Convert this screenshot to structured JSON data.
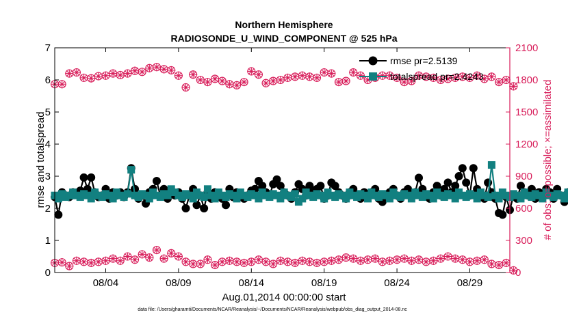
{
  "chart_data": {
    "type": "line",
    "title": "Northern Hemisphere",
    "subtitle": "RADIOSONDE_U_WIND_COMPONENT @ 525 hPa",
    "xlabel": "Aug.01,2014 00:00:00 start",
    "ylabel_left": "rmse and totalspread",
    "ylabel_right": "# of obs: o=possible; ×=assimilated",
    "footnote": "data file: /Users/gharamti/Documents/NCAR/Reanalysis/~/Documents/NCAR/Reanalysis/webpub/obs_diag_output_2014-08.nc",
    "x_range": [
      0.5,
      31.75
    ],
    "ylim_left": [
      0,
      7
    ],
    "ylim_right": [
      0,
      2100
    ],
    "x_ticks": [
      {
        "value": 4,
        "label": "08/04"
      },
      {
        "value": 9,
        "label": "08/09"
      },
      {
        "value": 14,
        "label": "08/14"
      },
      {
        "value": 19,
        "label": "08/19"
      },
      {
        "value": 24,
        "label": "08/24"
      },
      {
        "value": 29,
        "label": "08/29"
      }
    ],
    "y_ticks_left": [
      "0",
      "1",
      "2",
      "3",
      "4",
      "5",
      "6",
      "7"
    ],
    "y_ticks_right": [
      "0",
      "300",
      "600",
      "900",
      "1200",
      "1500",
      "1800",
      "2100"
    ],
    "colors": {
      "rmse": "#000000",
      "totalspread": "#128080",
      "nobs": "#d81d5a",
      "axes": "#000000"
    },
    "legend": [
      {
        "series": "rmse",
        "label": "rmse pr=2.5139"
      },
      {
        "series": "totalspread",
        "label": "totalspread pr=2.4243"
      }
    ],
    "series": [
      {
        "name": "rmse",
        "axis": "left",
        "marker": "circle",
        "x_start": 0.5,
        "x_step": 0.25,
        "values": [
          2.35,
          1.8,
          2.5,
          2.4,
          2.35,
          2.5,
          2.45,
          2.55,
          2.96,
          2.6,
          2.96,
          2.5,
          2.35,
          2.4,
          2.6,
          2.3,
          2.5,
          2.4,
          2.5,
          2.35,
          2.5,
          3.25,
          2.6,
          2.3,
          2.4,
          2.15,
          2.5,
          2.6,
          2.85,
          2.4,
          2.6,
          2.3,
          2.45,
          2.4,
          2.5,
          2.3,
          2.0,
          2.4,
          2.6,
          2.1,
          2.4,
          2.0,
          2.5,
          2.3,
          2.5,
          2.4,
          2.3,
          2.1,
          2.6,
          2.35,
          2.5,
          2.4,
          2.3,
          2.4,
          2.55,
          2.6,
          2.85,
          2.7,
          2.5,
          2.4,
          2.75,
          2.9,
          2.7,
          2.5,
          2.4,
          2.3,
          2.5,
          2.75,
          2.6,
          2.4,
          2.7,
          2.5,
          2.6,
          2.7,
          2.3,
          2.4,
          2.8,
          2.7,
          2.5,
          2.4,
          2.3,
          2.5,
          2.6,
          2.4,
          2.3,
          2.5,
          2.4,
          2.5,
          2.6,
          2.3,
          2.2,
          2.4,
          2.5,
          2.6,
          2.4,
          2.3,
          2.5,
          2.6,
          2.4,
          2.5,
          2.95,
          2.6,
          2.4,
          2.3,
          2.5,
          2.7,
          2.4,
          2.6,
          2.8,
          2.5,
          2.7,
          3.0,
          3.25,
          2.8,
          2.4,
          3.25,
          2.6,
          2.4,
          2.3,
          2.8,
          2.5,
          2.3,
          1.85,
          1.8,
          2.35,
          1.95,
          2.4,
          2.3,
          2.7,
          2.5,
          2.4,
          2.6,
          2.3,
          2.5,
          2.4,
          2.6,
          2.5,
          2.3,
          2.6,
          2.4,
          2.2,
          2.5,
          2.3,
          2.4,
          2.6,
          2.5,
          2.4,
          2.3,
          2.5,
          2.6,
          2.4,
          2.3,
          2.5,
          2.4,
          3.15,
          2.7,
          2.4,
          2.5,
          2.6,
          2.3,
          2.4,
          2.5,
          2.55,
          3.2,
          2.6,
          2.7,
          2.6,
          2.4,
          2.5,
          2.6,
          2.5,
          2.4,
          2.3,
          2.5,
          2.4,
          2.6,
          2.2,
          2.6,
          2.7,
          2.5,
          2.4,
          2.3,
          2.6,
          2.7,
          2.4,
          2.5,
          2.6,
          2.3,
          2.4,
          2.5,
          2.55,
          2.4,
          2.6,
          2.5,
          2.4,
          2.3,
          2.5,
          2.6,
          2.7,
          2.4,
          2.5,
          2.5,
          2.6,
          2.7,
          2.4,
          2.5,
          2.45,
          2.55,
          2.6,
          2.4,
          2.3,
          2.5,
          2.6,
          2.4,
          2.5,
          2.35,
          2.45
        ]
      },
      {
        "name": "totalspread",
        "axis": "left",
        "marker": "square",
        "x_start": 0.5,
        "x_step": 0.25,
        "values": [
          2.4,
          2.3,
          2.45,
          2.35,
          2.4,
          2.5,
          2.4,
          2.35,
          2.45,
          2.4,
          2.3,
          2.5,
          2.4,
          2.35,
          2.45,
          2.4,
          2.3,
          2.5,
          2.4,
          2.35,
          2.45,
          3.2,
          2.4,
          2.35,
          2.45,
          2.4,
          2.3,
          2.5,
          2.4,
          2.35,
          2.45,
          2.4,
          2.6,
          2.5,
          2.4,
          2.35,
          2.45,
          2.4,
          2.3,
          2.5,
          2.4,
          2.35,
          2.6,
          2.4,
          2.3,
          2.5,
          2.4,
          2.35,
          2.45,
          2.4,
          2.3,
          2.5,
          2.4,
          2.35,
          2.45,
          2.4,
          2.3,
          2.5,
          2.4,
          2.35,
          2.45,
          2.4,
          2.3,
          2.5,
          2.4,
          2.35,
          2.45,
          2.2,
          2.3,
          2.5,
          2.4,
          2.35,
          2.45,
          2.4,
          2.3,
          2.5,
          2.4,
          2.35,
          2.45,
          2.4,
          2.3,
          2.5,
          2.4,
          2.35,
          2.45,
          2.4,
          2.3,
          2.5,
          2.4,
          2.35,
          2.45,
          2.4,
          2.3,
          2.5,
          2.4,
          2.35,
          2.45,
          2.4,
          2.3,
          2.5,
          2.4,
          2.35,
          2.45,
          2.4,
          2.3,
          2.5,
          2.4,
          2.35,
          2.45,
          2.4,
          2.3,
          2.5,
          2.4,
          2.35,
          2.45,
          2.4,
          2.3,
          2.5,
          2.4,
          2.35,
          3.35,
          2.4,
          2.3,
          2.5,
          2.4,
          2.35,
          2.45,
          2.4,
          2.3,
          2.5,
          2.4,
          2.35,
          2.45,
          2.4,
          2.3,
          2.5,
          2.4,
          2.35,
          2.45,
          2.4,
          2.3,
          2.5,
          2.4,
          2.35,
          2.45,
          2.4,
          2.3,
          2.5,
          2.4,
          2.35,
          2.45,
          2.4,
          2.3,
          2.5,
          2.4,
          2.35,
          2.45,
          2.4,
          2.6,
          2.5,
          2.4,
          2.35,
          2.45,
          2.4,
          2.3,
          2.5,
          2.4,
          2.35,
          2.45,
          2.4,
          2.3,
          2.5,
          2.4,
          2.35,
          2.45,
          2.4,
          2.3,
          2.5,
          2.4,
          2.35,
          2.45,
          2.4,
          2.3,
          2.5,
          2.4,
          2.35,
          2.45,
          2.4,
          2.3,
          2.5,
          2.4,
          2.35,
          2.45,
          2.4,
          2.3,
          2.5,
          2.4,
          2.35,
          2.45,
          2.4,
          2.3,
          2.5,
          2.4,
          2.35,
          2.45,
          2.4,
          2.3,
          2.5,
          2.4,
          2.35,
          2.45,
          2.4,
          2.3,
          2.5,
          2.4,
          2.35,
          2.45,
          2.4,
          2.3,
          2.5,
          2.4,
          2.35,
          2.45,
          2.4,
          2.3
        ]
      },
      {
        "name": "obs_possible_top",
        "axis": "right",
        "marker": "circle-plus",
        "x_start": 0.5,
        "x_step": 0.5,
        "values": [
          1760,
          1760,
          1860,
          1870,
          1820,
          1815,
          1835,
          1840,
          1860,
          1845,
          1860,
          1885,
          1875,
          1910,
          1920,
          1900,
          1890,
          1840,
          1730,
          1850,
          1800,
          1780,
          1810,
          1790,
          1760,
          1750,
          1780,
          1880,
          1850,
          1770,
          1790,
          1800,
          1820,
          1830,
          1840,
          1830,
          1820,
          1870,
          1860,
          1780,
          1790,
          1870,
          1840,
          1800,
          1820,
          1840,
          1840,
          1820,
          1780,
          1790,
          1840,
          1830,
          1820,
          1800,
          1810,
          1820,
          1830,
          1820,
          1840,
          1810,
          1830,
          1780,
          1800,
          1740
        ]
      },
      {
        "name": "obs_assimilated_top",
        "axis": "right",
        "marker": "asterisk",
        "x_start": 0.5,
        "x_step": 0.5,
        "values": [
          1760,
          1760,
          1860,
          1870,
          1820,
          1815,
          1835,
          1840,
          1860,
          1845,
          1860,
          1885,
          1875,
          1910,
          1920,
          1900,
          1890,
          1840,
          1730,
          1850,
          1800,
          1780,
          1810,
          1790,
          1760,
          1750,
          1780,
          1880,
          1850,
          1770,
          1790,
          1800,
          1820,
          1830,
          1840,
          1830,
          1820,
          1870,
          1860,
          1780,
          1790,
          1870,
          1840,
          1800,
          1820,
          1840,
          1840,
          1820,
          1780,
          1790,
          1840,
          1830,
          1820,
          1800,
          1810,
          1820,
          1830,
          1820,
          1840,
          1810,
          1830,
          1780,
          1800,
          1740
        ]
      },
      {
        "name": "obs_possible_bottom",
        "axis": "right",
        "marker": "circle-plus",
        "x_start": 0.5,
        "x_step": 0.5,
        "values": [
          90,
          95,
          60,
          110,
          100,
          90,
          100,
          110,
          130,
          110,
          150,
          120,
          170,
          140,
          210,
          130,
          180,
          150,
          100,
          80,
          80,
          120,
          70,
          100,
          110,
          100,
          90,
          100,
          120,
          100,
          80,
          110,
          100,
          90,
          110,
          100,
          90,
          100,
          110,
          120,
          140,
          130,
          110,
          120,
          130,
          100,
          110,
          120,
          130,
          110,
          120,
          100,
          110,
          130,
          150,
          130,
          120,
          100,
          110,
          120,
          80,
          70,
          90,
          20
        ]
      },
      {
        "name": "obs_assimilated_bottom",
        "axis": "right",
        "marker": "asterisk",
        "x_start": 0.5,
        "x_step": 0.5,
        "values": [
          90,
          95,
          60,
          110,
          100,
          90,
          100,
          110,
          130,
          110,
          150,
          120,
          170,
          140,
          210,
          130,
          180,
          150,
          100,
          80,
          80,
          120,
          70,
          100,
          110,
          100,
          90,
          100,
          120,
          100,
          80,
          110,
          100,
          90,
          110,
          100,
          90,
          100,
          110,
          120,
          140,
          130,
          110,
          120,
          130,
          100,
          110,
          120,
          130,
          110,
          120,
          100,
          110,
          130,
          150,
          130,
          120,
          100,
          110,
          120,
          80,
          70,
          90,
          20
        ]
      }
    ]
  }
}
